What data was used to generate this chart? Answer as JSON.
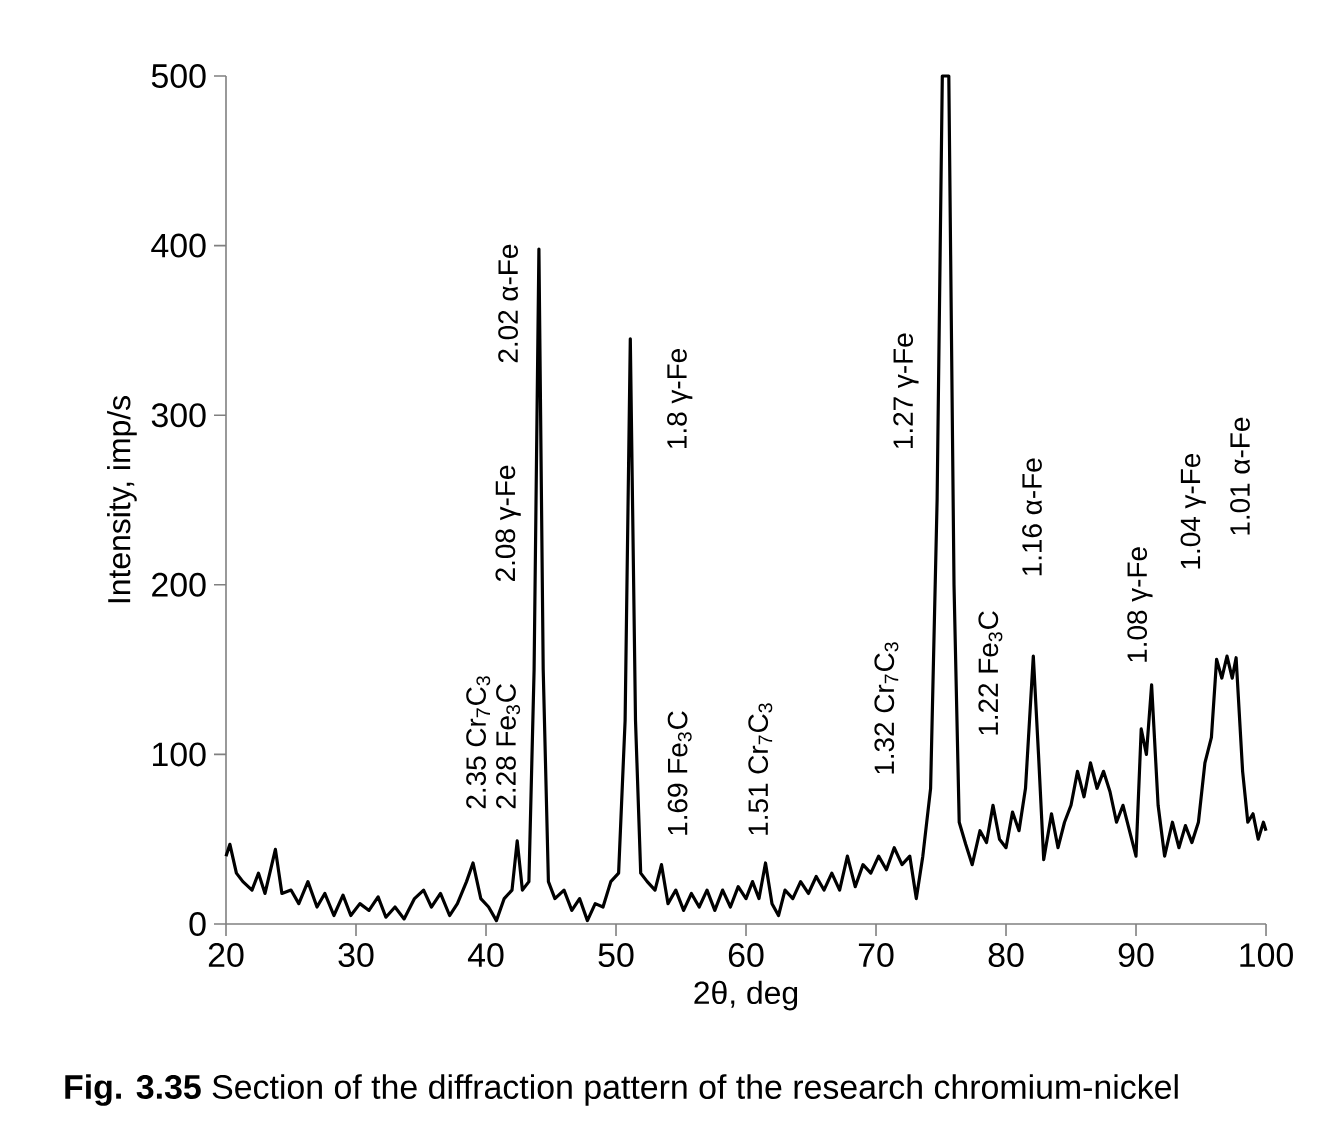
{
  "chart_data": {
    "type": "line",
    "xlabel": "2θ, deg",
    "ylabel": "Intensity, imp/s",
    "xlim": [
      20,
      100
    ],
    "ylim": [
      0,
      500
    ],
    "xticks": [
      20,
      30,
      40,
      50,
      60,
      70,
      80,
      90,
      100
    ],
    "yticks": [
      0,
      100,
      200,
      300,
      400,
      500
    ],
    "grid": false,
    "marker": "none",
    "line_style": "solid",
    "series": [
      {
        "color": "#000000",
        "x": [
          20.0,
          20.3,
          20.8,
          21.3,
          22,
          22.5,
          23,
          23.8,
          24.3,
          25,
          25.6,
          26.3,
          27,
          27.6,
          28.3,
          29,
          29.6,
          30.3,
          31,
          31.7,
          32.3,
          33,
          33.7,
          34.5,
          35.2,
          35.8,
          36.5,
          37.2,
          37.8,
          38.5,
          39.0,
          39.6,
          40.2,
          40.8,
          41.4,
          42.0,
          42.4,
          42.8,
          43.3,
          43.7,
          44.07,
          44.4,
          44.8,
          45.3,
          46,
          46.6,
          47.2,
          47.8,
          48.4,
          49,
          49.6,
          50.2,
          50.7,
          51.1,
          51.5,
          51.9,
          52.4,
          53,
          53.5,
          54,
          54.6,
          55.2,
          55.8,
          56.4,
          57,
          57.6,
          58.2,
          58.8,
          59.4,
          60,
          60.5,
          61,
          61.5,
          62,
          62.5,
          63,
          63.6,
          64.2,
          64.8,
          65.4,
          66,
          66.6,
          67.2,
          67.8,
          68.4,
          69,
          69.6,
          70.2,
          70.8,
          71.4,
          72,
          72.6,
          73.1,
          73.6,
          74.2,
          74.7,
          75.1,
          75.6,
          76,
          76.4,
          76.9,
          77.4,
          78,
          78.5,
          79,
          79.5,
          80,
          80.5,
          81,
          81.5,
          82.1,
          82.5,
          82.9,
          83.5,
          84,
          84.5,
          85,
          85.5,
          86,
          86.5,
          87,
          87.5,
          88,
          88.5,
          89,
          89.5,
          90,
          90.4,
          90.8,
          91.2,
          91.7,
          92.2,
          92.8,
          93.3,
          93.8,
          94.3,
          94.8,
          95.3,
          95.8,
          96.2,
          96.6,
          97,
          97.4,
          97.7,
          98.2,
          98.6,
          99,
          99.4,
          99.8,
          100
        ],
        "values": [
          40,
          47,
          30,
          25,
          20,
          30,
          18,
          44,
          18,
          20,
          12,
          25,
          10,
          18,
          5,
          17,
          5,
          12,
          8,
          16,
          4,
          10,
          3,
          15,
          20,
          10,
          18,
          5,
          12,
          25,
          36,
          15,
          10,
          2,
          15,
          20,
          49,
          20,
          25,
          150,
          398,
          150,
          25,
          15,
          20,
          8,
          15,
          2,
          12,
          10,
          25,
          30,
          120,
          345,
          120,
          30,
          25,
          20,
          35,
          12,
          20,
          8,
          18,
          10,
          20,
          8,
          20,
          10,
          22,
          15,
          25,
          15,
          36,
          12,
          5,
          20,
          15,
          25,
          18,
          28,
          20,
          30,
          20,
          40,
          22,
          35,
          30,
          40,
          32,
          45,
          35,
          40,
          15,
          40,
          80,
          250,
          500,
          500,
          200,
          60,
          47,
          35,
          55,
          48,
          70,
          50,
          45,
          66,
          55,
          80,
          158,
          100,
          38,
          65,
          45,
          60,
          70,
          90,
          75,
          95,
          80,
          90,
          78,
          60,
          70,
          55,
          40,
          115,
          100,
          141,
          70,
          40,
          60,
          45,
          58,
          48,
          60,
          95,
          110,
          156,
          145,
          158,
          145,
          157,
          90,
          60,
          65,
          50,
          60,
          55
        ]
      }
    ],
    "annotations": [
      "2.35 Cr$_{7}$C$_{3}$",
      "2.28 Fe$_{3}$C",
      "2.08 γ-Fe",
      "2.02 α-Fe",
      "1.8 γ-Fe",
      "1.69 Fe$_{3}$C",
      "1.51 Cr$_{7}$C$_{3}$",
      "1.32 Cr$_{7}$C$_{3}$",
      "1.27 γ-Fe",
      "1.22 Fe$_{3}$C",
      "1.16 α-Fe",
      "1.08 γ-Fe",
      "1.04 γ-Fe",
      "1.01 α-Fe",
      "**Fig. 3.35** Section of the diffraction pattern of the research chromium-nickel"
    ]
  }
}
